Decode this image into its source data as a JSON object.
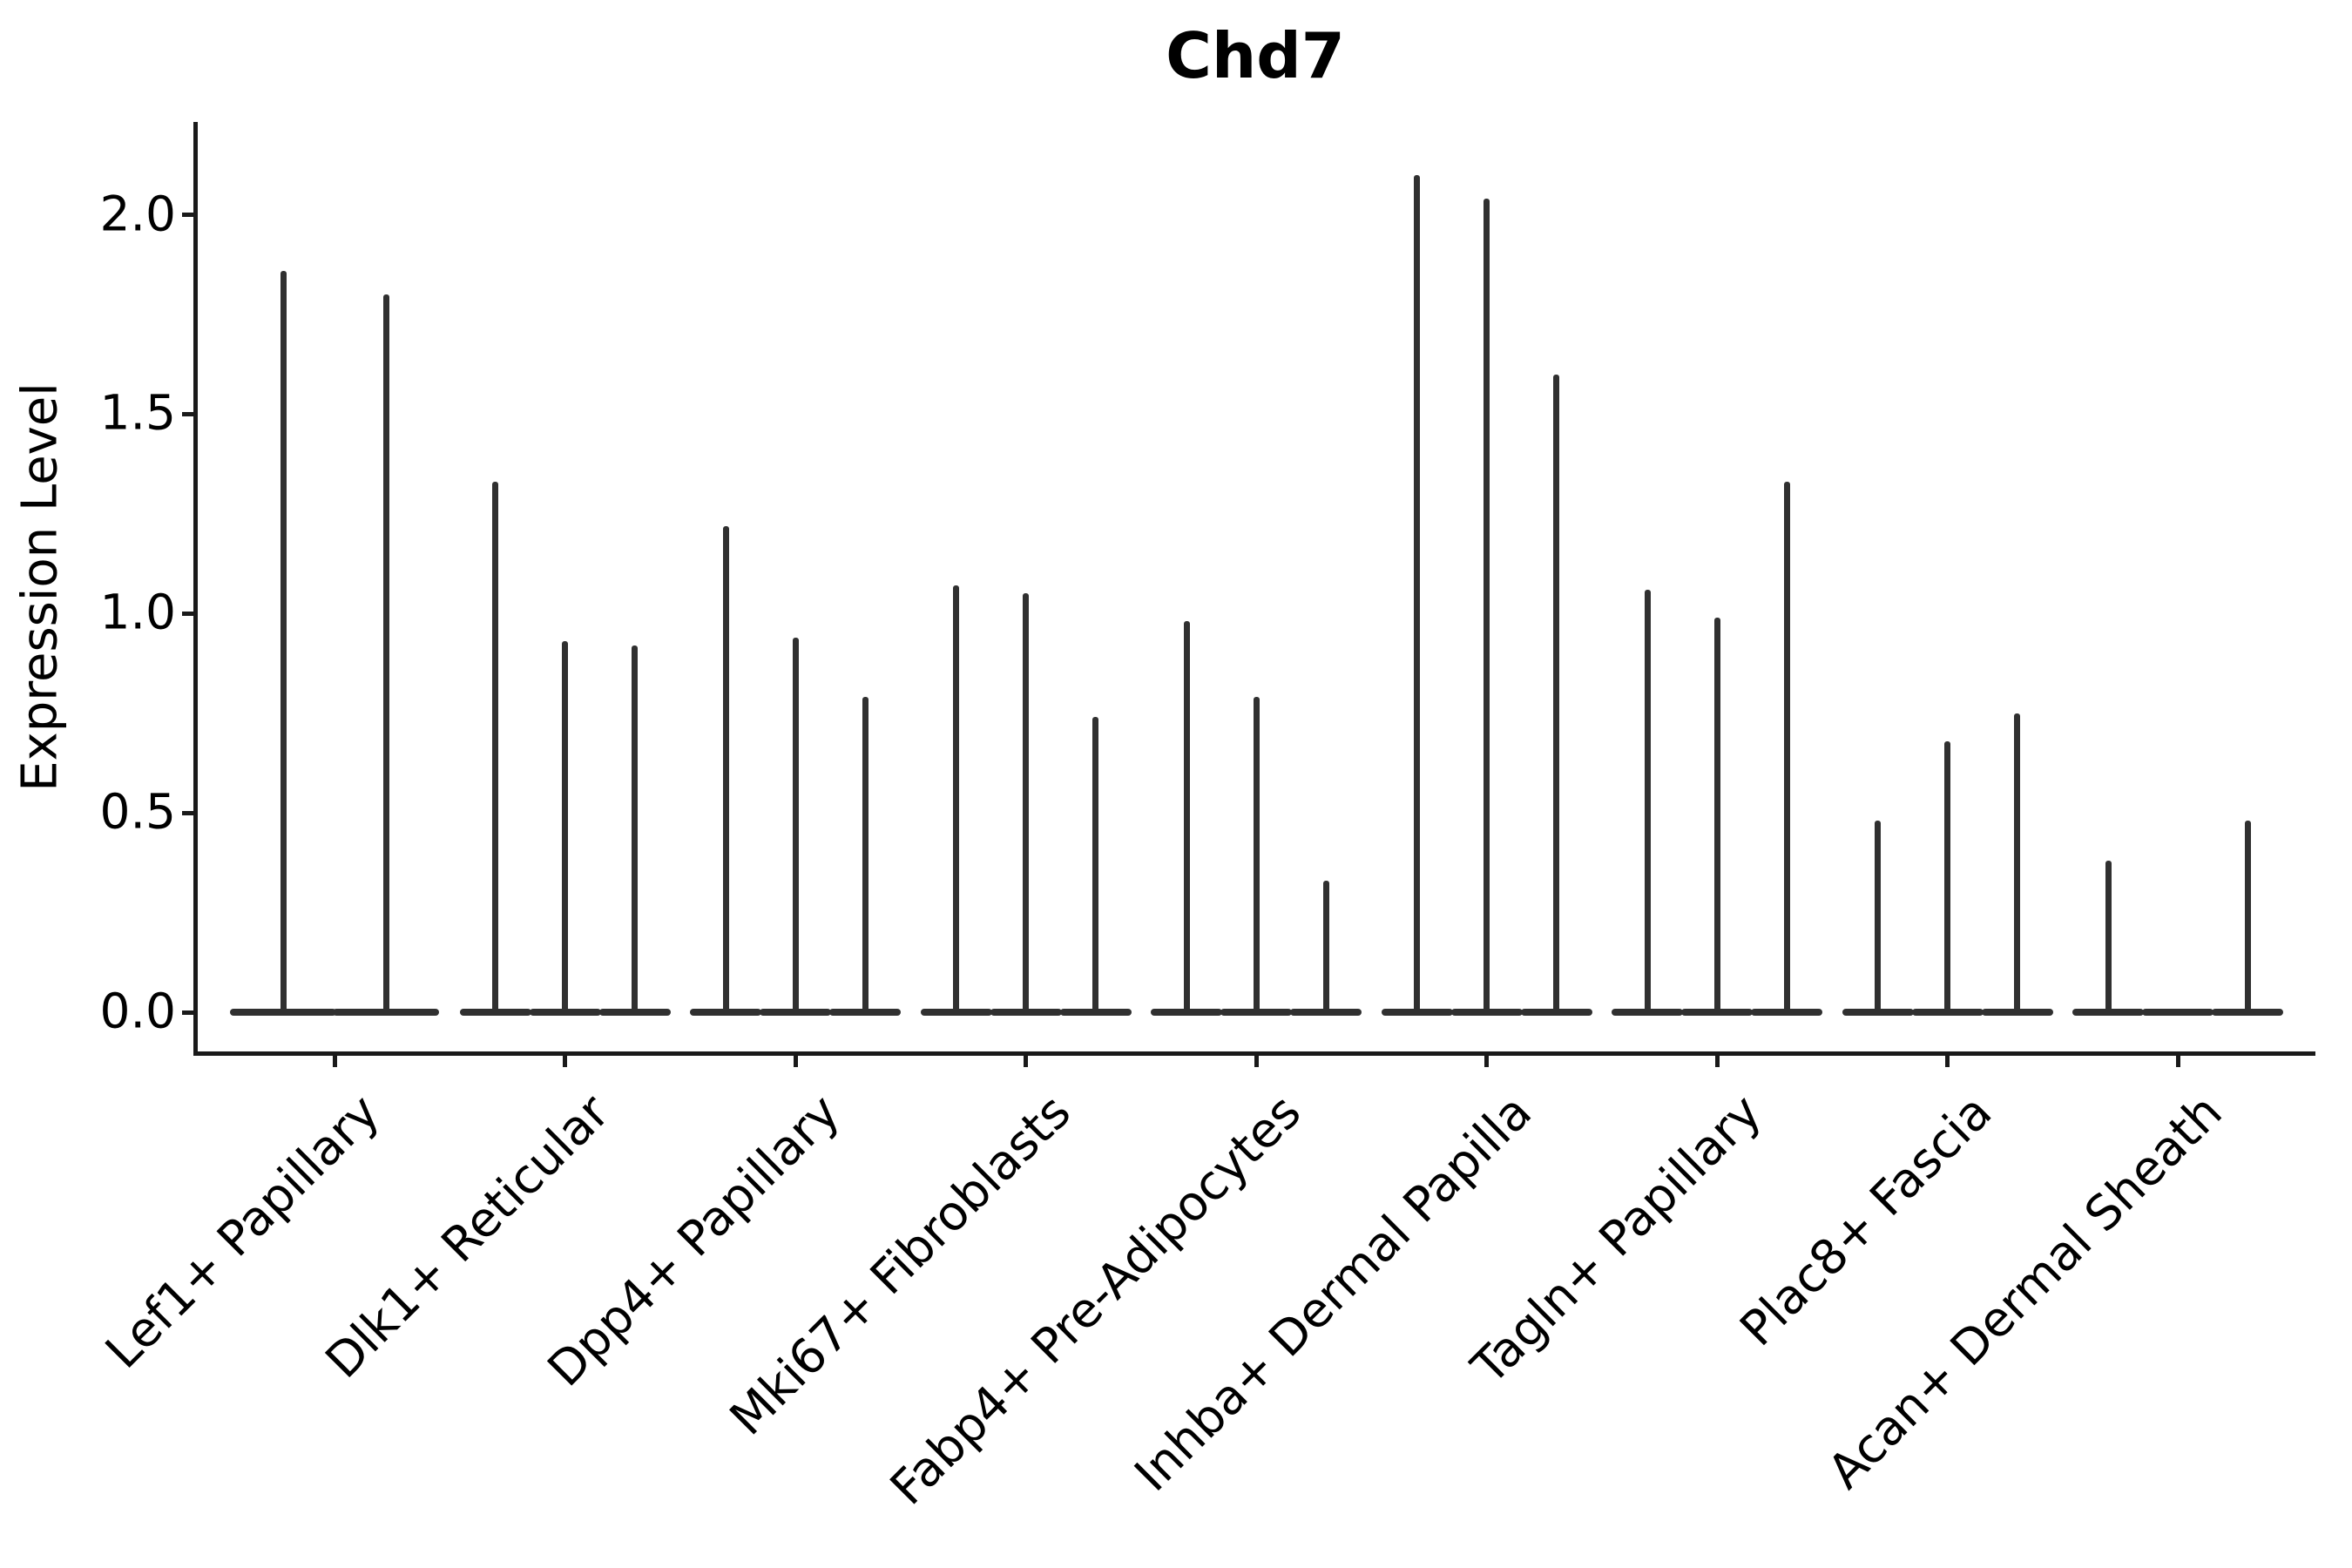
{
  "title": "Chd7",
  "y_axis": {
    "label": "Expression Level",
    "tick_labels": [
      "0.0",
      "0.5",
      "1.0",
      "1.5",
      "2.0"
    ]
  },
  "chart_data": {
    "type": "violin",
    "title": "Chd7",
    "xlabel": "",
    "ylabel": "Expression Level",
    "ylim": [
      0,
      2.23
    ],
    "yticks": [
      0.0,
      0.5,
      1.0,
      1.5,
      2.0
    ],
    "grid": "off",
    "legend": "none",
    "categories": [
      "Lef1+ Papillary",
      "Dlk1+ Reticular",
      "Dpp4+ Papillary",
      "Mki67+ Fibroblasts",
      "Fabp4+ Pre-Adipocytes",
      "Inhba+ Dermal Papilla",
      "Tagln+ Papillary",
      "Plac8+ Fascia",
      "Acan+ Dermal Sheath"
    ],
    "groups": [
      {
        "category": "Lef1+ Papillary",
        "violins": [
          {
            "offset": -59,
            "width": 120,
            "peak": 1.86
          },
          {
            "offset": 59,
            "width": 120,
            "peak": 1.8
          }
        ]
      },
      {
        "category": "Dlk1+ Reticular",
        "violins": [
          {
            "offset": -80,
            "width": 80,
            "peak": 1.33
          },
          {
            "offset": 0,
            "width": 80,
            "peak": 0.93
          },
          {
            "offset": 80,
            "width": 80,
            "peak": 0.92
          }
        ]
      },
      {
        "category": "Dpp4+ Papillary",
        "violins": [
          {
            "offset": -80,
            "width": 80,
            "peak": 1.22
          },
          {
            "offset": 0,
            "width": 80,
            "peak": 0.94
          },
          {
            "offset": 80,
            "width": 80,
            "peak": 0.79
          }
        ]
      },
      {
        "category": "Mki67+ Fibroblasts",
        "violins": [
          {
            "offset": -80,
            "width": 80,
            "peak": 1.07
          },
          {
            "offset": 0,
            "width": 80,
            "peak": 1.05
          },
          {
            "offset": 80,
            "width": 80,
            "peak": 0.74
          }
        ]
      },
      {
        "category": "Fabp4+ Pre-Adipocytes",
        "violins": [
          {
            "offset": -80,
            "width": 80,
            "peak": 0.98
          },
          {
            "offset": 0,
            "width": 80,
            "peak": 0.79
          },
          {
            "offset": 80,
            "width": 80,
            "peak": 0.33
          }
        ]
      },
      {
        "category": "Inhba+ Dermal Papilla",
        "violins": [
          {
            "offset": -80,
            "width": 80,
            "peak": 2.1
          },
          {
            "offset": 0,
            "width": 80,
            "peak": 2.04
          },
          {
            "offset": 80,
            "width": 80,
            "peak": 1.6
          }
        ]
      },
      {
        "category": "Tagln+ Papillary",
        "violins": [
          {
            "offset": -80,
            "width": 80,
            "peak": 1.06
          },
          {
            "offset": 0,
            "width": 80,
            "peak": 0.99
          },
          {
            "offset": 80,
            "width": 80,
            "peak": 1.33
          }
        ]
      },
      {
        "category": "Plac8+ Fascia",
        "violins": [
          {
            "offset": -80,
            "width": 80,
            "peak": 0.48
          },
          {
            "offset": 0,
            "width": 80,
            "peak": 0.68
          },
          {
            "offset": 80,
            "width": 80,
            "peak": 0.75
          }
        ]
      },
      {
        "category": "Acan+ Dermal Sheath",
        "violins": [
          {
            "offset": -80,
            "width": 80,
            "peak": 0.38
          },
          {
            "offset": 0,
            "width": 80,
            "peak": 0.0
          },
          {
            "offset": 80,
            "width": 80,
            "peak": 0.48
          }
        ]
      }
    ]
  },
  "style": {
    "violin_color": "#303030",
    "axis_color": "#1a1a1a",
    "text_color": "#000000",
    "background": "#ffffff"
  }
}
